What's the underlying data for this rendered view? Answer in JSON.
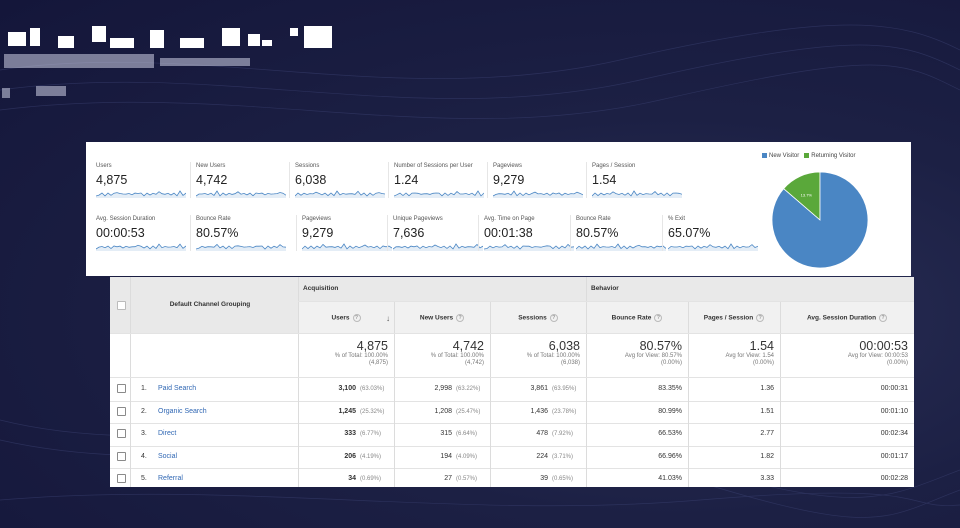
{
  "colors": {
    "new_visitor": "#4a86c4",
    "returning_visitor": "#5aa83a",
    "link": "#3168b4"
  },
  "metrics_row1": [
    {
      "label": "Users",
      "value": "4,875"
    },
    {
      "label": "New Users",
      "value": "4,742"
    },
    {
      "label": "Sessions",
      "value": "6,038"
    },
    {
      "label": "Number of Sessions per User",
      "value": "1.24"
    },
    {
      "label": "Pageviews",
      "value": "9,279"
    },
    {
      "label": "Pages / Session",
      "value": "1.54"
    }
  ],
  "metrics_row2": [
    {
      "label": "Avg. Session Duration",
      "value": "00:00:53"
    },
    {
      "label": "Bounce Rate",
      "value": "80.57%"
    },
    {
      "label": "Pageviews",
      "value": "9,279"
    },
    {
      "label": "Unique Pageviews",
      "value": "7,636"
    },
    {
      "label": "Avg. Time on Page",
      "value": "00:01:38"
    },
    {
      "label": "Bounce Rate",
      "value": "80.57%"
    },
    {
      "label": "% Exit",
      "value": "65.07%"
    }
  ],
  "pie": {
    "legend": [
      "New Visitor",
      "Returning Visitor"
    ],
    "slices": [
      {
        "name": "New Visitor",
        "percent": 86.3,
        "label": "86.3%"
      },
      {
        "name": "Returning Visitor",
        "percent": 13.7,
        "label": "13.7%"
      }
    ]
  },
  "table": {
    "dimension_header": "Default Channel Grouping",
    "group_acquisition": "Acquisition",
    "group_behavior": "Behavior",
    "columns": [
      "Users",
      "New Users",
      "Sessions",
      "Bounce Rate",
      "Pages / Session",
      "Avg. Session Duration"
    ],
    "totals": [
      {
        "value": "4,875",
        "line1": "% of Total: 100.00%",
        "line2": "(4,875)"
      },
      {
        "value": "4,742",
        "line1": "% of Total: 100.00%",
        "line2": "(4,742)"
      },
      {
        "value": "6,038",
        "line1": "% of Total: 100.00%",
        "line2": "(6,038)"
      },
      {
        "value": "80.57%",
        "line1": "Avg for View: 80.57%",
        "line2": "(0.00%)"
      },
      {
        "value": "1.54",
        "line1": "Avg for View: 1.54",
        "line2": "(0.00%)"
      },
      {
        "value": "00:00:53",
        "line1": "Avg for View: 00:00:53",
        "line2": "(0.00%)"
      }
    ],
    "rows": [
      {
        "idx": "1.",
        "name": "Paid Search",
        "users": "3,100",
        "users_pct": "(63.03%)",
        "new_users": "2,998",
        "new_users_pct": "(63.22%)",
        "sessions": "3,861",
        "sessions_pct": "(63.95%)",
        "bounce": "83.35%",
        "pps": "1.36",
        "dur": "00:00:31"
      },
      {
        "idx": "2.",
        "name": "Organic Search",
        "users": "1,245",
        "users_pct": "(25.32%)",
        "new_users": "1,208",
        "new_users_pct": "(25.47%)",
        "sessions": "1,436",
        "sessions_pct": "(23.78%)",
        "bounce": "80.99%",
        "pps": "1.51",
        "dur": "00:01:10"
      },
      {
        "idx": "3.",
        "name": "Direct",
        "users": "333",
        "users_pct": "(6.77%)",
        "new_users": "315",
        "new_users_pct": "(6.64%)",
        "sessions": "478",
        "sessions_pct": "(7.92%)",
        "bounce": "66.53%",
        "pps": "2.77",
        "dur": "00:02:34"
      },
      {
        "idx": "4.",
        "name": "Social",
        "users": "206",
        "users_pct": "(4.19%)",
        "new_users": "194",
        "new_users_pct": "(4.09%)",
        "sessions": "224",
        "sessions_pct": "(3.71%)",
        "bounce": "66.96%",
        "pps": "1.82",
        "dur": "00:01:17"
      },
      {
        "idx": "5.",
        "name": "Referral",
        "users": "34",
        "users_pct": "(0.69%)",
        "new_users": "27",
        "new_users_pct": "(0.57%)",
        "sessions": "39",
        "sessions_pct": "(0.65%)",
        "bounce": "41.03%",
        "pps": "3.33",
        "dur": "00:02:28"
      }
    ]
  }
}
